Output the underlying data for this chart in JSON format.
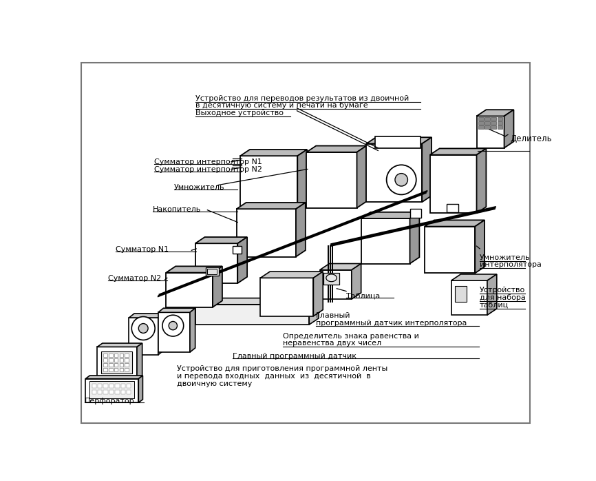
{
  "bg_color": "#ffffff",
  "line_color": "#000000",
  "text_color": "#000000",
  "labels": {
    "top_device_l1": "Устройство для переводов результатов из двоичной",
    "top_device_l2": "в десятичную систему и печати на бумаге",
    "top_device_l3": "Выходное устройство",
    "delitel": "Делитель",
    "summator_interp1": "Сумматор интерполтор N1",
    "summator_interp2": "Сумматор интерполтор N2",
    "umnojitel": "Умножитель",
    "nakopitel": "Накопитель",
    "summator_n1": "Сумматор N1",
    "summator_n2": "Сумматор N2",
    "umnojitel_interp_l1": "Умножитель",
    "umnojitel_interp_l2": "интерполятора",
    "tablitsa": "Таблица",
    "ustr_nabor_l1": "Устройство",
    "ustr_nabor_l2": "для набора",
    "ustr_nabor_l3": "таблиц",
    "glavny_interp_l1": "Главный",
    "glavny_interp_l2": "программный датчик интерполятора",
    "opredelitel_l1": "Определитель знака равенства и",
    "opredelitel_l2": "неравенства двух чисел",
    "glavny": "Главный программный датчик",
    "perforator": "Перфоратор",
    "bottom_device_l1": "Устройство для приготовления программной ленты",
    "bottom_device_l2": "и перевода входных  данных  из  десятичной  в",
    "bottom_device_l3": "двоичную систему"
  }
}
